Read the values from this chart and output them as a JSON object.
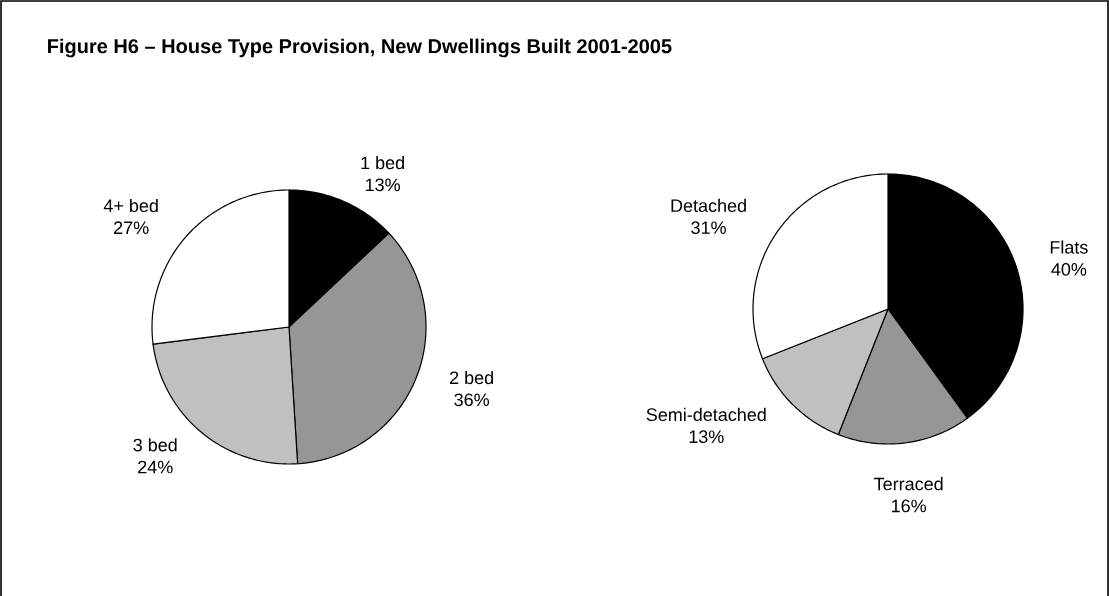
{
  "chart_data": [
    {
      "type": "pie",
      "title": "Figure H6 – House Type Provision, New Dwellings Built 2001-2005",
      "categories": [
        "1 bed",
        "2 bed",
        "3 bed",
        "4+ bed"
      ],
      "values": [
        13,
        36,
        24,
        27
      ],
      "value_labels": [
        "13%",
        "36%",
        "24%",
        "27%"
      ],
      "colors": [
        "#000000",
        "#969696",
        "#c0c0c0",
        "#ffffff"
      ]
    },
    {
      "type": "pie",
      "categories": [
        "Flats",
        "Terraced",
        "Semi-detached",
        "Detached"
      ],
      "values": [
        40,
        16,
        13,
        31
      ],
      "value_labels": [
        "40%",
        "16%",
        "13%",
        "31%"
      ],
      "colors": [
        "#000000",
        "#969696",
        "#c0c0c0",
        "#ffffff"
      ]
    }
  ]
}
